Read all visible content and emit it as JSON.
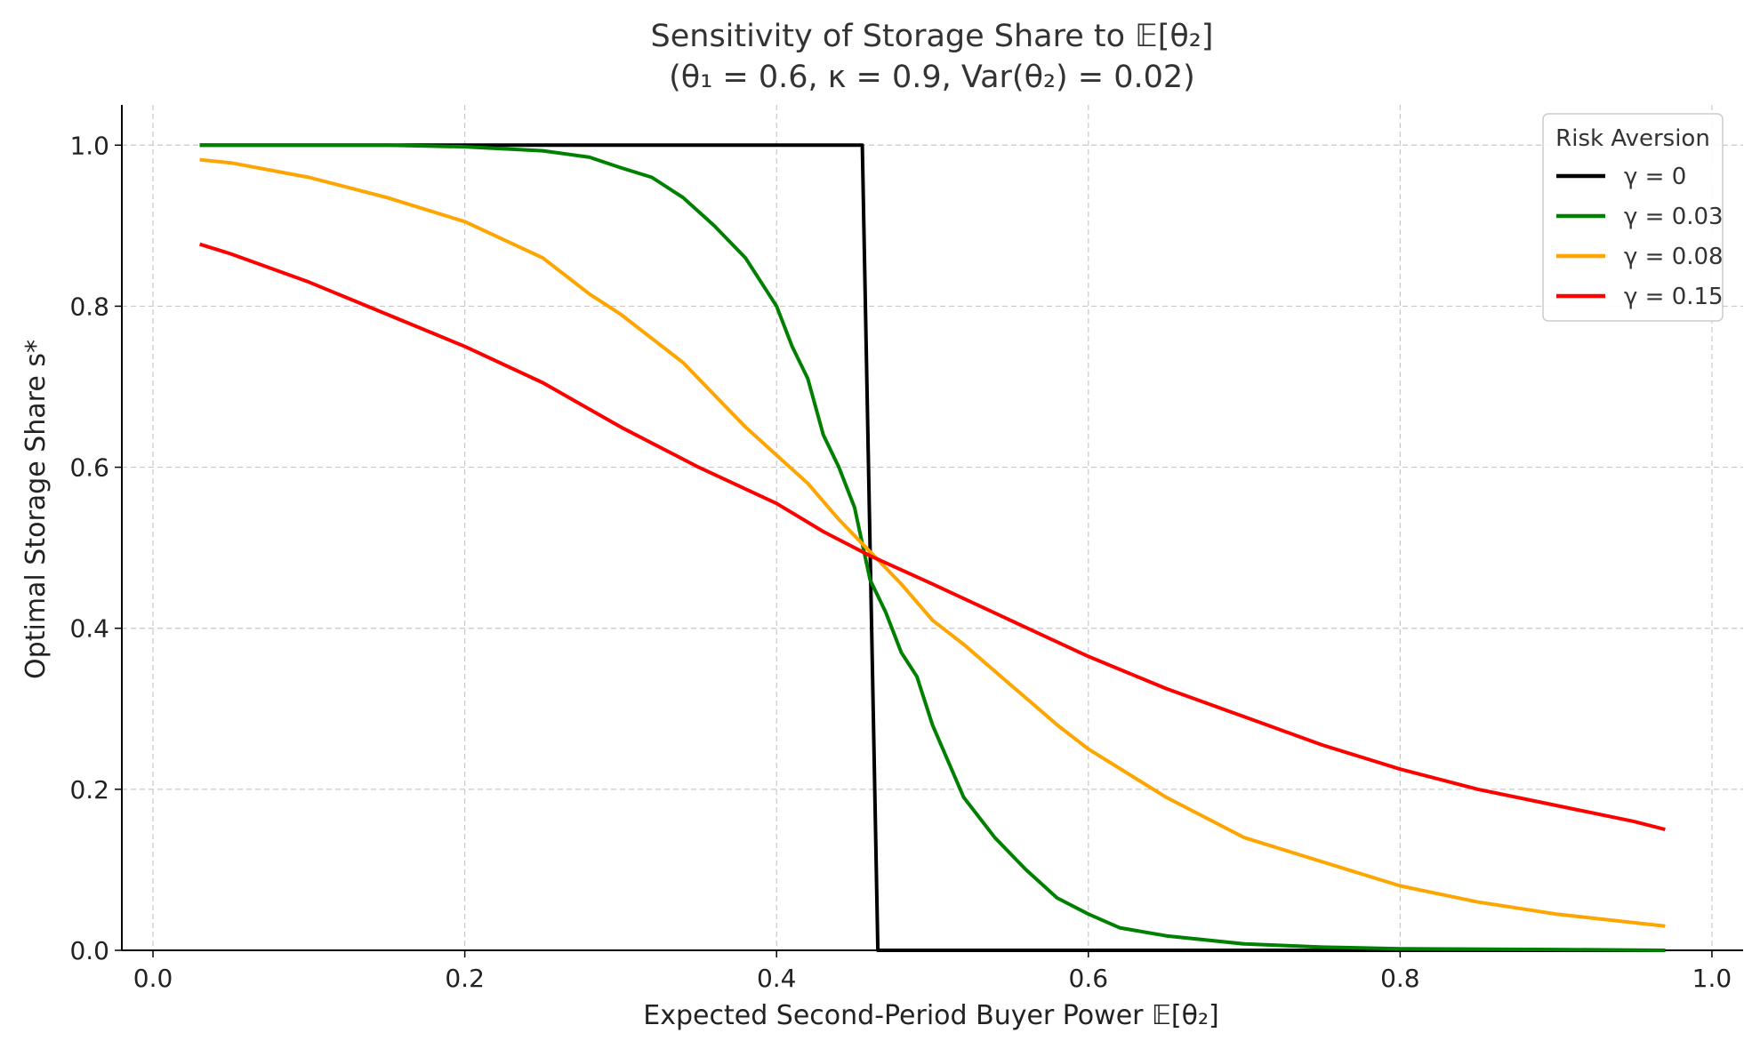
{
  "chart_data": {
    "type": "line",
    "title": "Sensitivity of Storage Share to 𝔼[θ₂]",
    "subtitle": "(θ₁ = 0.6, κ = 0.9, Var(θ₂) = 0.02)",
    "xlabel": "Expected Second-Period Buyer Power 𝔼[θ₂]",
    "ylabel": "Optimal Storage Share s*",
    "xlim": [
      -0.02,
      1.02
    ],
    "ylim": [
      0.0,
      1.05
    ],
    "x_ticks": [
      0.0,
      0.2,
      0.4,
      0.6,
      0.8,
      1.0
    ],
    "x_tick_labels": [
      "0.0",
      "0.2",
      "0.4",
      "0.6",
      "0.8",
      "1.0"
    ],
    "y_ticks": [
      0.0,
      0.2,
      0.4,
      0.6,
      0.8,
      1.0
    ],
    "y_tick_labels": [
      "0.0",
      "0.2",
      "0.4",
      "0.6",
      "0.8",
      "1.0"
    ],
    "grid": true,
    "legend": {
      "title": "Risk Aversion",
      "placement": "top-right"
    },
    "series": [
      {
        "name": "γ = 0",
        "color": "#000000",
        "x": [
          0.03,
          0.1,
          0.2,
          0.3,
          0.4,
          0.455,
          0.465,
          0.5,
          0.6,
          0.7,
          0.8,
          0.9,
          0.97
        ],
        "y": [
          1.0,
          1.0,
          1.0,
          1.0,
          1.0,
          1.0,
          0.0,
          0.0,
          0.0,
          0.0,
          0.0,
          0.0,
          0.0
        ]
      },
      {
        "name": "γ = 0.03",
        "color": "#008000",
        "x": [
          0.03,
          0.1,
          0.15,
          0.2,
          0.25,
          0.28,
          0.3,
          0.32,
          0.34,
          0.36,
          0.38,
          0.4,
          0.41,
          0.42,
          0.43,
          0.44,
          0.45,
          0.46,
          0.47,
          0.48,
          0.49,
          0.5,
          0.52,
          0.54,
          0.56,
          0.58,
          0.6,
          0.62,
          0.65,
          0.7,
          0.75,
          0.8,
          0.9,
          0.97
        ],
        "y": [
          1.0,
          1.0,
          1.0,
          0.998,
          0.993,
          0.985,
          0.972,
          0.96,
          0.935,
          0.9,
          0.86,
          0.8,
          0.75,
          0.71,
          0.64,
          0.6,
          0.55,
          0.46,
          0.42,
          0.37,
          0.34,
          0.28,
          0.19,
          0.14,
          0.1,
          0.065,
          0.045,
          0.028,
          0.018,
          0.008,
          0.004,
          0.002,
          0.001,
          0.0
        ]
      },
      {
        "name": "γ = 0.08",
        "color": "#FFA500",
        "x": [
          0.03,
          0.05,
          0.1,
          0.15,
          0.2,
          0.25,
          0.28,
          0.3,
          0.32,
          0.34,
          0.36,
          0.38,
          0.4,
          0.42,
          0.44,
          0.46,
          0.48,
          0.5,
          0.52,
          0.55,
          0.58,
          0.6,
          0.65,
          0.7,
          0.75,
          0.8,
          0.85,
          0.9,
          0.97
        ],
        "y": [
          0.982,
          0.978,
          0.96,
          0.935,
          0.905,
          0.86,
          0.815,
          0.79,
          0.76,
          0.73,
          0.69,
          0.65,
          0.615,
          0.58,
          0.535,
          0.495,
          0.455,
          0.41,
          0.38,
          0.33,
          0.28,
          0.25,
          0.19,
          0.14,
          0.11,
          0.08,
          0.06,
          0.045,
          0.03
        ]
      },
      {
        "name": "γ = 0.15",
        "color": "#FF0000",
        "x": [
          0.03,
          0.05,
          0.1,
          0.15,
          0.2,
          0.25,
          0.3,
          0.35,
          0.4,
          0.43,
          0.46,
          0.5,
          0.55,
          0.6,
          0.65,
          0.7,
          0.75,
          0.8,
          0.85,
          0.9,
          0.95,
          0.97
        ],
        "y": [
          0.877,
          0.865,
          0.83,
          0.79,
          0.75,
          0.705,
          0.65,
          0.6,
          0.555,
          0.52,
          0.49,
          0.455,
          0.41,
          0.365,
          0.325,
          0.29,
          0.255,
          0.225,
          0.2,
          0.18,
          0.16,
          0.15
        ]
      }
    ]
  }
}
